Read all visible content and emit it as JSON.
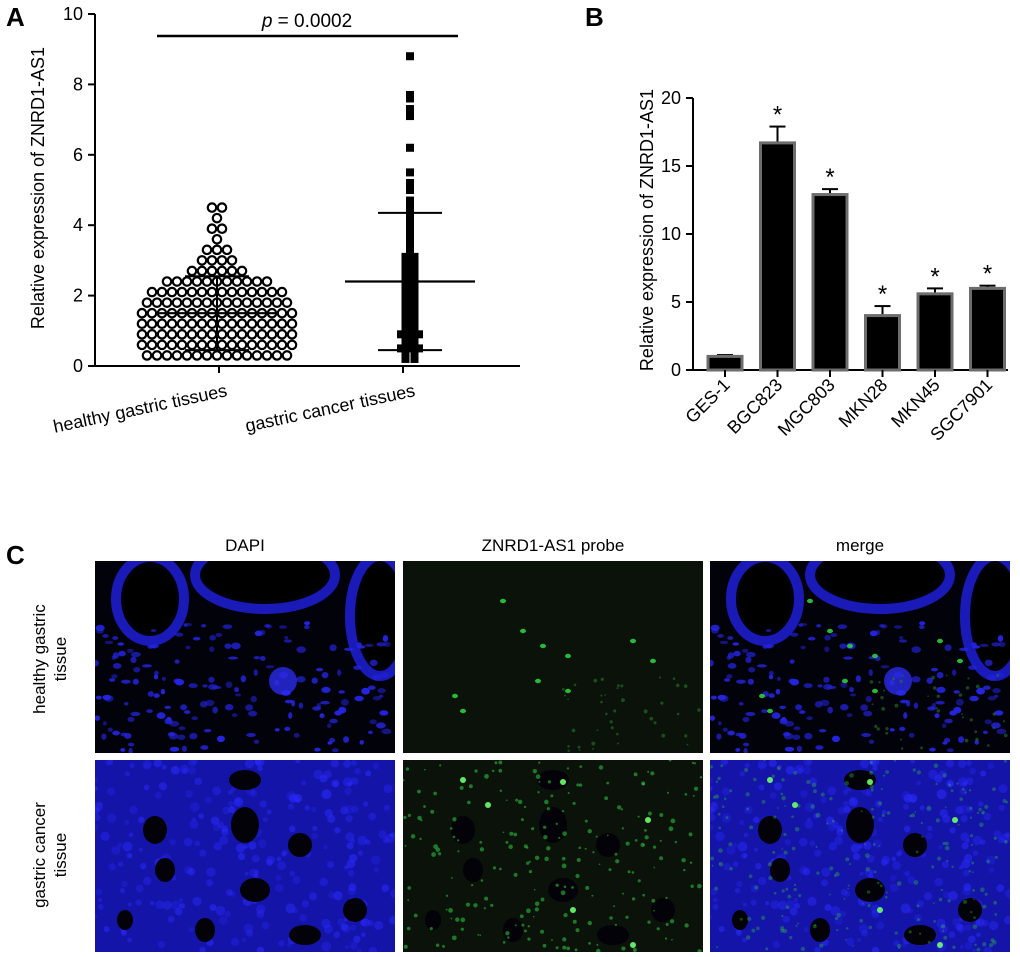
{
  "panels": {
    "a": "A",
    "b": "B",
    "c": "C"
  },
  "chart_data": [
    {
      "type": "scatter",
      "panel": "A",
      "title": "",
      "xlabel": "",
      "ylabel": "Relative expression of ZNRD1-AS1",
      "ylim": [
        0,
        10
      ],
      "yticks": [
        0,
        2,
        4,
        6,
        8,
        10
      ],
      "categories": [
        "healthy gastric tissues",
        "gastric cancer tissues"
      ],
      "annotation": {
        "p_symbol": "p",
        "p_value": " = 0.0002"
      },
      "series": [
        {
          "name": "healthy gastric tissues",
          "marker": "open-circle",
          "mean": 1.5,
          "sd_upper": 2.55,
          "sd_lower": 0.45,
          "values": [
            4.5,
            4.5,
            4.2,
            3.9,
            3.9,
            3.6,
            3.3,
            3.3,
            3.3,
            3.0,
            3.0,
            3.0,
            3.0,
            2.7,
            2.7,
            2.7,
            2.7,
            2.7,
            2.7,
            2.4,
            2.4,
            2.4,
            2.4,
            2.4,
            2.4,
            2.4,
            2.4,
            2.4,
            2.4,
            2.4,
            2.1,
            2.1,
            2.1,
            2.1,
            2.1,
            2.1,
            2.1,
            2.1,
            2.1,
            2.1,
            2.1,
            2.1,
            2.1,
            2.1,
            1.8,
            1.8,
            1.8,
            1.8,
            1.8,
            1.8,
            1.8,
            1.8,
            1.8,
            1.8,
            1.8,
            1.8,
            1.8,
            1.8,
            1.8,
            1.5,
            1.5,
            1.5,
            1.5,
            1.5,
            1.5,
            1.5,
            1.5,
            1.5,
            1.5,
            1.5,
            1.5,
            1.5,
            1.5,
            1.5,
            1.5,
            1.2,
            1.2,
            1.2,
            1.2,
            1.2,
            1.2,
            1.2,
            1.2,
            1.2,
            1.2,
            1.2,
            1.2,
            1.2,
            1.2,
            1.2,
            1.2,
            0.9,
            0.9,
            0.9,
            0.9,
            0.9,
            0.9,
            0.9,
            0.9,
            0.9,
            0.9,
            0.9,
            0.9,
            0.9,
            0.9,
            0.9,
            0.9,
            0.6,
            0.6,
            0.6,
            0.6,
            0.6,
            0.6,
            0.6,
            0.6,
            0.6,
            0.6,
            0.6,
            0.6,
            0.6,
            0.6,
            0.6,
            0.6,
            0.3,
            0.3,
            0.3,
            0.3,
            0.3,
            0.3,
            0.3,
            0.3,
            0.3,
            0.3,
            0.3,
            0.3,
            0.3,
            0.3,
            0.3
          ]
        },
        {
          "name": "gastric cancer tissues",
          "marker": "filled-square",
          "mean": 2.4,
          "sd_upper": 4.35,
          "sd_lower": 0.45,
          "values": [
            8.8,
            7.7,
            7.6,
            7.3,
            7.1,
            6.2,
            5.5,
            5.2,
            5.0,
            4.7,
            4.6,
            4.4,
            4.2,
            4.1,
            4.0,
            3.8,
            3.7,
            3.6,
            3.5,
            3.4,
            3.3,
            3.2,
            3.1,
            3.1,
            3.0,
            2.9,
            2.9,
            2.8,
            2.8,
            2.7,
            2.6,
            2.6,
            2.5,
            2.5,
            2.4,
            2.4,
            2.3,
            2.3,
            2.2,
            2.2,
            2.1,
            2.1,
            2.0,
            2.0,
            1.9,
            1.9,
            1.8,
            1.8,
            1.7,
            1.7,
            1.6,
            1.6,
            1.5,
            1.5,
            1.4,
            1.4,
            1.3,
            1.3,
            1.2,
            1.2,
            1.1,
            1.1,
            1.0,
            1.0,
            0.9,
            0.9,
            0.9,
            0.8,
            0.8,
            0.7,
            0.7,
            0.6,
            0.6,
            0.5,
            0.5,
            0.5,
            0.4,
            0.4,
            0.3,
            0.3,
            0.2,
            0.2
          ]
        }
      ]
    },
    {
      "type": "bar",
      "panel": "B",
      "title": "",
      "xlabel": "",
      "ylabel": "Relative expression of ZNRD1-AS1",
      "ylim": [
        0,
        20
      ],
      "yticks": [
        0,
        5,
        10,
        15,
        20
      ],
      "categories": [
        "GES-1",
        "BGC823",
        "MGC803",
        "MKN28",
        "MKN45",
        "SGC7901"
      ],
      "values": [
        1.0,
        16.7,
        12.9,
        4.0,
        5.6,
        6.0
      ],
      "errors": [
        0.1,
        1.2,
        0.4,
        0.7,
        0.4,
        0.2
      ],
      "significance": [
        "",
        "*",
        "*",
        "*",
        "*",
        "*"
      ]
    }
  ],
  "imaging": {
    "columns": [
      "DAPI",
      "ZNRD1-AS1 probe",
      "merge"
    ],
    "rows": [
      {
        "line1": "healthy gastric",
        "line2": "tissue"
      },
      {
        "line1": "gastric cancer",
        "line2": "tissue"
      }
    ],
    "colors": {
      "dapi": "#1a1acc",
      "probe": "#2ecc40",
      "background": "#02020a"
    }
  }
}
